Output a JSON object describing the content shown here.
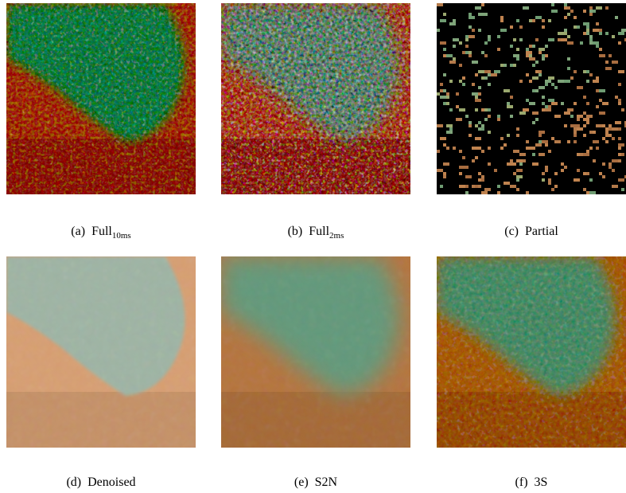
{
  "panels": [
    {
      "tag": "(a)",
      "name": "Full",
      "sub": "10ms"
    },
    {
      "tag": "(b)",
      "name": "Full",
      "sub": "2ms"
    },
    {
      "tag": "(c)",
      "name": "Partial"
    },
    {
      "tag": "(d)",
      "name": "Denoised"
    },
    {
      "tag": "(e)",
      "name": "S2N"
    },
    {
      "tag": "(f)",
      "name": "3S"
    }
  ]
}
